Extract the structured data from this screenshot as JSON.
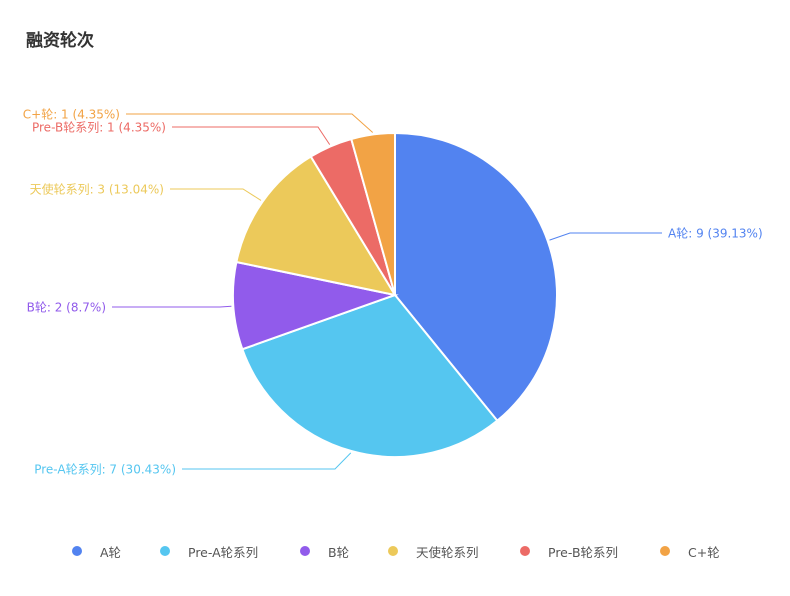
{
  "chart_data": {
    "type": "pie",
    "title": "融资轮次",
    "slices": [
      {
        "name": "A轮",
        "value": 9,
        "percent": "39.13%",
        "color": "#5283f0"
      },
      {
        "name": "Pre-A轮系列",
        "value": 7,
        "percent": "30.43%",
        "color": "#55c6f0"
      },
      {
        "name": "B轮",
        "value": 2,
        "percent": "8.7%",
        "color": "#915beb"
      },
      {
        "name": "天使轮系列",
        "value": 3,
        "percent": "13.04%",
        "color": "#ecc95a"
      },
      {
        "name": "Pre-B轮系列",
        "value": 1,
        "percent": "4.35%",
        "color": "#ec6b66"
      },
      {
        "name": "C+轮",
        "value": 1,
        "percent": "4.35%",
        "color": "#f2a345"
      }
    ],
    "legend_position": "bottom"
  }
}
